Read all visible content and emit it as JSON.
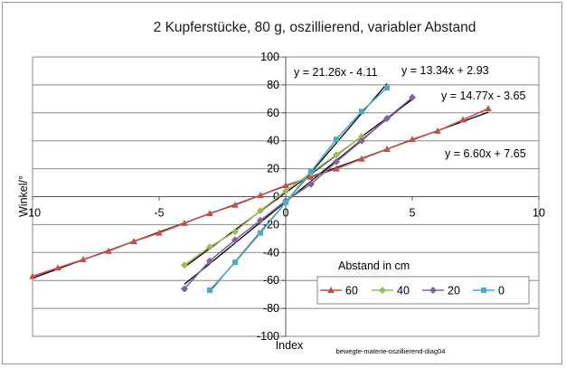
{
  "chart_data": {
    "type": "line",
    "title": "2 Kupferstücke, 80 g, oszillierend, variabler Abstand",
    "xlabel": "Index",
    "ylabel": "Winkel/°",
    "xlim": [
      -10,
      10
    ],
    "ylim": [
      -100,
      100
    ],
    "x_ticks": [
      "-10",
      "-5",
      "0",
      "5",
      "10"
    ],
    "y_ticks": [
      "100",
      "80",
      "60",
      "40",
      "20",
      "0",
      "-20",
      "-40",
      "-60",
      "-80",
      "-100"
    ],
    "grid": "horizontal",
    "legend_title": "Abstand in cm",
    "legend_position": "bottom-right",
    "series": [
      {
        "name": "60",
        "color": "#c0504d",
        "marker": "triangle",
        "x": [
          -10,
          -9,
          -8,
          -7,
          -6,
          -5,
          -4,
          -3,
          -2,
          -1,
          0,
          1,
          2,
          3,
          4,
          5,
          6,
          7,
          8
        ],
        "y": [
          -57,
          -51,
          -45,
          -39,
          -32,
          -26,
          -19,
          -12,
          -6,
          1,
          8,
          14,
          20,
          27,
          34,
          41,
          47,
          55,
          63
        ]
      },
      {
        "name": "40",
        "color": "#9bbb59",
        "marker": "diamond",
        "x": [
          -4,
          -3,
          -2,
          -1,
          0,
          1,
          2,
          3
        ],
        "y": [
          -49,
          -36,
          -25,
          -10,
          4,
          17,
          30,
          43
        ]
      },
      {
        "name": "20",
        "color": "#8064a2",
        "marker": "diamond",
        "x": [
          -4,
          -3,
          -2,
          -1,
          0,
          1,
          2,
          3,
          4,
          5
        ],
        "y": [
          -66,
          -46,
          -31,
          -17,
          -3,
          9,
          25,
          40,
          56,
          71
        ]
      },
      {
        "name": "0",
        "color": "#4bacc6",
        "marker": "square",
        "x": [
          -3,
          -2,
          -1,
          0,
          1,
          2,
          3,
          4
        ],
        "y": [
          -67,
          -47,
          -26,
          -4,
          18,
          41,
          61,
          78
        ]
      }
    ],
    "trendlines": [
      {
        "label": "y = 21.26x - 4.11",
        "slope": 21.26,
        "intercept": -4.11,
        "x_range": [
          -3,
          4
        ]
      },
      {
        "label": "y = 13.34x + 2.93",
        "slope": 13.34,
        "intercept": 2.93,
        "x_range": [
          -4,
          5
        ]
      },
      {
        "label": "y = 14.77x - 3.65",
        "slope": 14.77,
        "intercept": -3.65,
        "x_range": [
          -4,
          5
        ]
      },
      {
        "label": "y = 6.60x + 7.65",
        "slope": 6.6,
        "intercept": 7.65,
        "x_range": [
          -10,
          8
        ]
      }
    ],
    "footnote": "bewegte-materie-oszillierend-diag04"
  }
}
